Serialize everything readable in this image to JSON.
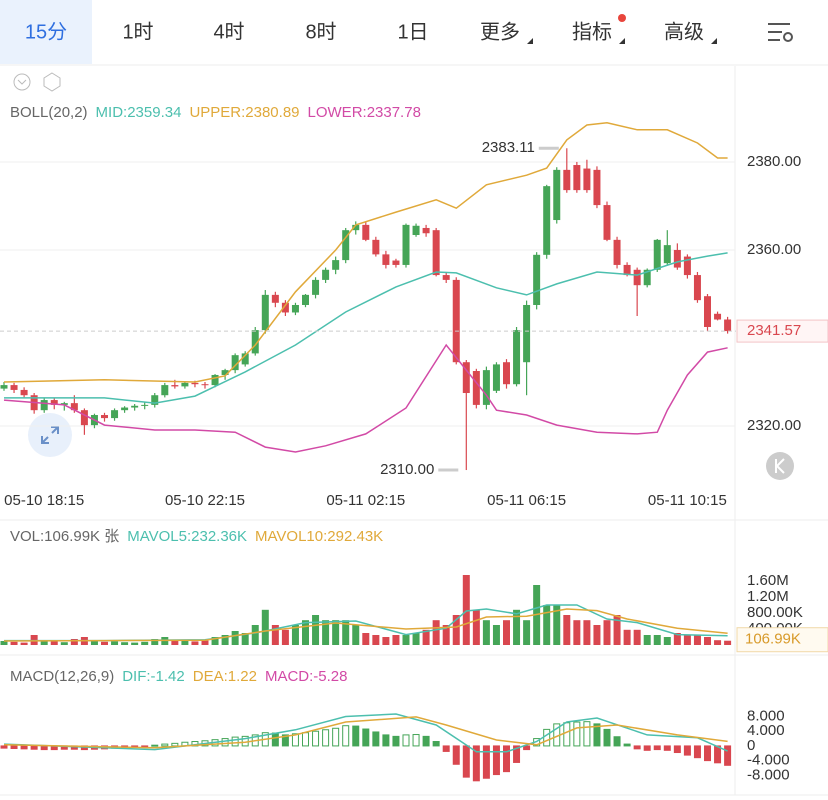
{
  "tabs": [
    "15分",
    "1时",
    "4时",
    "8时",
    "1日",
    "更多",
    "指标",
    "高级"
  ],
  "chart_data": [
    {
      "type": "candlestick",
      "title": "BOLL(20,2)",
      "up_color": "#45a557",
      "down_color": "#d9474f",
      "grid": true,
      "categories": [
        null,
        null,
        null,
        null,
        "05-10 18:15",
        null,
        null,
        null,
        null,
        null,
        null,
        null,
        null,
        null,
        null,
        null,
        null,
        null,
        null,
        null,
        "05-10 22:15",
        null,
        null,
        null,
        null,
        null,
        null,
        null,
        null,
        null,
        null,
        null,
        null,
        null,
        null,
        null,
        "05-11 02:15",
        null,
        null,
        null,
        null,
        null,
        null,
        null,
        null,
        null,
        null,
        null,
        null,
        null,
        null,
        null,
        "05-11 06:15",
        null,
        null,
        null,
        null,
        null,
        null,
        null,
        null,
        null,
        null,
        null,
        null,
        null,
        null,
        null,
        "05-11 10:15",
        null,
        null,
        null,
        null
      ],
      "open": [
        2328.5,
        2329.3,
        2328.2,
        2327.0,
        2323.6,
        2325.9,
        2324.8,
        2325.2,
        2323.6,
        2320.2,
        2322.5,
        2321.8,
        2323.6,
        2324.2,
        2324.6,
        2324.8,
        2327.0,
        2329.3,
        2329.0,
        2329.8,
        2329.5,
        2329.3,
        2331.6,
        2332.7,
        2334.0,
        2336.5,
        2341.8,
        2349.8,
        2348.0,
        2345.8,
        2347.5,
        2349.8,
        2353.2,
        2355.5,
        2357.7,
        2364.5,
        2365.7,
        2362.3,
        2359.0,
        2357.6,
        2356.6,
        2363.4,
        2365.0,
        2364.5,
        2354.3,
        2353.2,
        2334.5,
        2332.5,
        2324.8,
        2328.0,
        2334.5,
        2329.5,
        2334.5,
        2347.5,
        2358.9,
        2366.8,
        2378.2,
        2379.3,
        2378.5,
        2378.2,
        2370.2,
        2362.3,
        2356.6,
        2355.5,
        2352.0,
        2355.5,
        2357.0,
        2360.0,
        2358.5,
        2354.3,
        2349.5,
        2345.5,
        2344.2
      ],
      "high": [
        2330.0,
        2329.8,
        2328.8,
        2327.5,
        2326.5,
        2326.3,
        2325.5,
        2327.0,
        2324.0,
        2322.8,
        2323.0,
        2324.0,
        2324.5,
        2325.0,
        2325.5,
        2327.5,
        2329.8,
        2330.5,
        2330.2,
        2330.3,
        2330.0,
        2331.8,
        2333.0,
        2336.5,
        2337.0,
        2342.5,
        2350.9,
        2350.5,
        2348.6,
        2348.0,
        2350.0,
        2353.8,
        2356.0,
        2358.5,
        2365.0,
        2366.5,
        2366.5,
        2363.0,
        2359.8,
        2358.0,
        2366.0,
        2366.0,
        2365.7,
        2365.0,
        2355.0,
        2353.8,
        2335.0,
        2333.0,
        2333.5,
        2334.5,
        2335.2,
        2342.5,
        2348.5,
        2359.5,
        2374.8,
        2378.8,
        2383.11,
        2380.0,
        2380.5,
        2379.0,
        2371.0,
        2363.0,
        2357.2,
        2356.0,
        2355.8,
        2362.5,
        2364.5,
        2361.5,
        2359.0,
        2355.0,
        2350.0,
        2346.0,
        2344.8
      ],
      "low": [
        2328.0,
        2327.5,
        2326.5,
        2322.8,
        2323.0,
        2323.8,
        2323.5,
        2323.0,
        2318.0,
        2319.5,
        2321.0,
        2321.2,
        2323.0,
        2323.5,
        2323.8,
        2324.2,
        2326.5,
        2328.5,
        2328.5,
        2328.8,
        2328.5,
        2328.8,
        2330.5,
        2332.0,
        2333.5,
        2336.0,
        2341.0,
        2347.0,
        2345.0,
        2345.2,
        2347.0,
        2349.0,
        2352.5,
        2354.5,
        2357.0,
        2363.5,
        2362.0,
        2358.5,
        2355.8,
        2356.0,
        2356.0,
        2363.0,
        2363.0,
        2354.0,
        2352.5,
        2334.0,
        2310.0,
        2324.0,
        2323.8,
        2327.5,
        2328.5,
        2329.0,
        2327.0,
        2346.5,
        2358.0,
        2366.0,
        2373.0,
        2373.0,
        2373.0,
        2369.5,
        2362.0,
        2355.8,
        2354.0,
        2345.0,
        2351.5,
        2355.0,
        2356.5,
        2355.5,
        2353.5,
        2348.0,
        2341.5,
        2344.0,
        2341.0
      ],
      "close": [
        2329.3,
        2328.2,
        2327.0,
        2323.6,
        2325.9,
        2324.8,
        2325.2,
        2323.6,
        2320.2,
        2322.5,
        2321.8,
        2323.6,
        2324.2,
        2324.6,
        2324.8,
        2327.0,
        2329.3,
        2329.0,
        2329.8,
        2329.5,
        2329.3,
        2331.6,
        2332.7,
        2336.1,
        2336.5,
        2341.8,
        2349.8,
        2348.0,
        2345.8,
        2347.5,
        2349.8,
        2353.2,
        2355.5,
        2357.7,
        2364.5,
        2365.7,
        2362.3,
        2359.0,
        2356.6,
        2356.6,
        2365.7,
        2365.5,
        2363.8,
        2354.3,
        2353.2,
        2334.5,
        2327.5,
        2324.8,
        2332.7,
        2334.0,
        2329.5,
        2341.8,
        2347.5,
        2358.9,
        2374.5,
        2378.2,
        2373.6,
        2373.6,
        2373.6,
        2370.2,
        2362.3,
        2356.6,
        2354.3,
        2352.0,
        2355.5,
        2362.3,
        2361.1,
        2356.0,
        2354.3,
        2348.6,
        2342.5,
        2344.2,
        2341.57
      ],
      "series": [
        {
          "name": "MID:2359.34",
          "color": "#4cbfae",
          "x": [
            0,
            10,
            15,
            19,
            24,
            29,
            34,
            39,
            43,
            45,
            49,
            52,
            55,
            59,
            63,
            67,
            70,
            72
          ],
          "values": [
            2326.4,
            2326.4,
            2325.2,
            2326.8,
            2332.3,
            2338.4,
            2345.9,
            2351.6,
            2355.0,
            2354.8,
            2351.4,
            2349.8,
            2352.3,
            2355.0,
            2354.3,
            2357.3,
            2358.6,
            2359.34
          ]
        },
        {
          "name": "UPPER:2380.89",
          "color": "#e0a93a",
          "x": [
            0,
            10,
            19,
            22,
            25,
            29,
            33,
            35,
            39,
            43,
            45,
            48,
            52,
            54,
            56,
            58,
            60,
            63,
            66,
            69,
            71,
            72
          ],
          "values": [
            2330.0,
            2330.5,
            2330.0,
            2331.4,
            2338.4,
            2350.5,
            2360.0,
            2365.7,
            2368.6,
            2371.4,
            2369.5,
            2374.8,
            2377.0,
            2378.6,
            2385.0,
            2388.4,
            2388.9,
            2387.3,
            2387.3,
            2384.3,
            2380.9,
            2380.89
          ]
        },
        {
          "name": "LOWER:2337.78",
          "color": "#d24aa6",
          "x": [
            0,
            6,
            10,
            15,
            19,
            23,
            26,
            29,
            32,
            36,
            40,
            44,
            46,
            48,
            49,
            52,
            55,
            59,
            63,
            65,
            66,
            68,
            70,
            72
          ],
          "values": [
            2325.9,
            2324.8,
            2320.2,
            2319.1,
            2319.1,
            2318.6,
            2315.2,
            2314.1,
            2315.5,
            2318.2,
            2324.1,
            2338.4,
            2332.7,
            2327.0,
            2323.6,
            2322.5,
            2320.2,
            2318.6,
            2318.2,
            2318.6,
            2323.6,
            2331.6,
            2336.8,
            2337.78
          ]
        }
      ],
      "ylim": [
        2306.6,
        2401.8
      ],
      "yticks": [
        {
          "value": 2320,
          "label": "2320.00"
        },
        {
          "value": 2360,
          "label": "2360.00"
        },
        {
          "value": 2380,
          "label": "2380.00"
        }
      ],
      "last_price": 2341.57,
      "annotations": [
        {
          "x": 56,
          "value": 2383.11
        },
        {
          "x": 46,
          "value": 2310,
          "label": "2310.00"
        }
      ]
    },
    {
      "type": "bar",
      "title": "VOL:106.99K 张",
      "values": [
        100000,
        80000,
        60000,
        250000,
        120000,
        90000,
        70000,
        150000,
        200000,
        100000,
        80000,
        90000,
        70000,
        60000,
        80000,
        150000,
        200000,
        100000,
        120000,
        90000,
        110000,
        200000,
        250000,
        350000,
        300000,
        500000,
        880000,
        500000,
        380000,
        500000,
        620000,
        750000,
        620000,
        620000,
        620000,
        500000,
        300000,
        250000,
        200000,
        250000,
        250000,
        300000,
        380000,
        620000,
        500000,
        750000,
        1750000,
        880000,
        620000,
        500000,
        620000,
        880000,
        620000,
        1500000,
        1000000,
        1000000,
        750000,
        620000,
        620000,
        500000,
        620000,
        750000,
        380000,
        380000,
        250000,
        250000,
        200000,
        300000,
        250000,
        250000,
        200000,
        120000,
        106990
      ],
      "value_labels": [
        null,
        null,
        null,
        null,
        null,
        null,
        null,
        null,
        null,
        null,
        null,
        null,
        null,
        null,
        null,
        null,
        null,
        null,
        null,
        null,
        null,
        null,
        null,
        null,
        null,
        null,
        null,
        null,
        null,
        null,
        null,
        null,
        null,
        null,
        null,
        null,
        null,
        null,
        null,
        null,
        null,
        null,
        null,
        null,
        null,
        null,
        null,
        null,
        null,
        null,
        null,
        null,
        null,
        null,
        null,
        null,
        null,
        null,
        null,
        null,
        null,
        null,
        null,
        null,
        null,
        null,
        null,
        null,
        null,
        null,
        null,
        null,
        "106.99K"
      ],
      "series": [
        {
          "name": "MAVOL5:232.36K",
          "color": "#4cbfae",
          "x": [
            0,
            10,
            20,
            25,
            30,
            35,
            40,
            44,
            46,
            48,
            51,
            54,
            57,
            60,
            63,
            67,
            72
          ],
          "values": [
            110000,
            110000,
            130000,
            300000,
            560000,
            600000,
            260000,
            420000,
            850000,
            900000,
            780000,
            1000000,
            1000000,
            650000,
            560000,
            260000,
            232360
          ]
        },
        {
          "name": "MAVOL10:292.43K",
          "color": "#e0a93a",
          "x": [
            0,
            10,
            20,
            26,
            33,
            40,
            45,
            48,
            52,
            56,
            59,
            62,
            67,
            72
          ],
          "values": [
            100000,
            110000,
            120000,
            350000,
            550000,
            400000,
            450000,
            700000,
            720000,
            900000,
            860000,
            650000,
            420000,
            292430
          ]
        }
      ],
      "ylim": [
        0,
        2250000
      ],
      "yticks": [
        {
          "value": 400000,
          "label": "400.00K"
        },
        {
          "value": 800000,
          "label": "800.00K"
        },
        {
          "value": 1200000,
          "label": "1.20M"
        },
        {
          "value": 1600000,
          "label": "1.60M"
        }
      ]
    },
    {
      "type": "macd",
      "title": "MACD(12,26,9)",
      "name": "MACD:-5.28",
      "name_color": "#d24aa6",
      "values": [
        -0.6,
        -0.7,
        -0.8,
        -0.9,
        -1.0,
        -1.0,
        -0.9,
        -0.9,
        -1.0,
        -0.9,
        -0.8,
        -0.6,
        -0.5,
        -0.4,
        -0.2,
        0.2,
        0.5,
        0.7,
        1.0,
        1.2,
        1.4,
        1.7,
        2.0,
        2.4,
        2.6,
        3.0,
        3.6,
        3.5,
        3.0,
        3.3,
        3.6,
        4.0,
        4.4,
        4.8,
        5.5,
        5.4,
        4.6,
        3.8,
        3.0,
        2.6,
        3.0,
        3.1,
        2.6,
        1.2,
        -1.5,
        -5.0,
        -8.5,
        -9.5,
        -8.8,
        -7.8,
        -7.0,
        -4.5,
        -1.0,
        2.0,
        4.5,
        6.0,
        6.3,
        6.5,
        6.6,
        6.0,
        4.5,
        2.5,
        0.5,
        -0.8,
        -1.2,
        -1.0,
        -1.2,
        -1.8,
        -2.5,
        -3.2,
        -4.0,
        -4.6,
        -5.28
      ],
      "series": [
        {
          "name": "DIF:-1.42",
          "color": "#4cbfae",
          "x": [
            0,
            15,
            24,
            29,
            34,
            39,
            43,
            47,
            50,
            53,
            56,
            59,
            64,
            69,
            72
          ],
          "values": [
            0.5,
            -1.0,
            2.0,
            4.4,
            8.0,
            8.7,
            5.7,
            -1.6,
            -1.6,
            1.2,
            6.5,
            7.6,
            3.0,
            2.2,
            -1.42
          ]
        },
        {
          "name": "DEA:1.22",
          "color": "#e0a93a",
          "x": [
            0,
            15,
            24,
            29,
            34,
            41,
            44,
            49,
            53,
            57,
            61,
            67,
            72
          ],
          "values": [
            0.3,
            -0.5,
            1.0,
            3.0,
            6.5,
            7.9,
            5.7,
            1.6,
            0.3,
            4.9,
            5.7,
            3.0,
            1.22
          ]
        }
      ],
      "ylim": [
        -12,
        12.5
      ],
      "yticks": [
        {
          "value": -8,
          "label": "-8.000"
        },
        {
          "value": -4,
          "label": "-4.000"
        },
        0,
        {
          "value": 4,
          "label": "4.000"
        },
        {
          "value": 8,
          "label": "8.000"
        }
      ]
    }
  ]
}
